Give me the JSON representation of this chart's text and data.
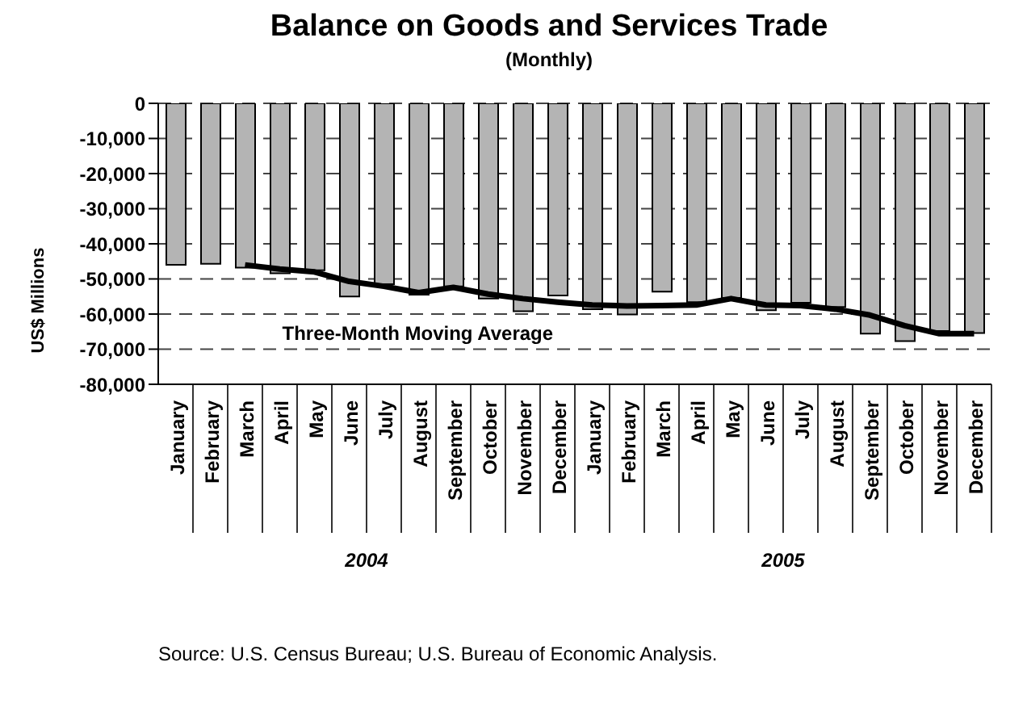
{
  "chart_data": {
    "type": "bar",
    "title": "Balance on Goods and Services Trade",
    "subtitle": "(Monthly)",
    "ylabel": "US$ Millions",
    "categories": [
      "January",
      "February",
      "March",
      "April",
      "May",
      "June",
      "July",
      "August",
      "September",
      "October",
      "November",
      "December",
      "January",
      "February",
      "March",
      "April",
      "May",
      "June",
      "July",
      "August",
      "September",
      "October",
      "November",
      "December"
    ],
    "series": [
      {
        "color": "#b4b4b4",
        "values": [
          -46000,
          -45700,
          -46800,
          -48400,
          -47500,
          -55000,
          -51500,
          -54500,
          -52100,
          -55600,
          -59200,
          -54700,
          -58600,
          -60100,
          -53600,
          -56600,
          -55400,
          -58900,
          -56800,
          -58000,
          -65600,
          -67700,
          -64800,
          -65400
        ]
      },
      {
        "type": "line",
        "name": "Three-Month Moving Average",
        "color": "#000000",
        "values": [
          null,
          null,
          -46000,
          -47200,
          -48000,
          -50700,
          -52100,
          -53900,
          -52400,
          -54300,
          -55600,
          -56600,
          -57400,
          -57700,
          -57600,
          -57400,
          -55600,
          -57400,
          -57600,
          -58600,
          -60300,
          -63300,
          -65600,
          -65600
        ]
      }
    ],
    "ylim": [
      -80000,
      0
    ],
    "yticks": [
      {
        "value": -80000,
        "label": "-80,000"
      },
      {
        "value": -70000,
        "label": "-70,000"
      },
      {
        "value": -60000,
        "label": "-60,000"
      },
      {
        "value": -50000,
        "label": "-50,000"
      },
      {
        "value": -40000,
        "label": "-40,000"
      },
      {
        "value": -30000,
        "label": "-30,000"
      },
      {
        "value": -20000,
        "label": "-20,000"
      },
      {
        "value": -10000,
        "label": "-10,000"
      },
      0
    ],
    "grid": "y",
    "legend": false,
    "marker": "none",
    "annotations": [
      "2004",
      "2005",
      "Source: U.S. Census Bureau; U.S. Bureau of Economic Analysis."
    ]
  }
}
